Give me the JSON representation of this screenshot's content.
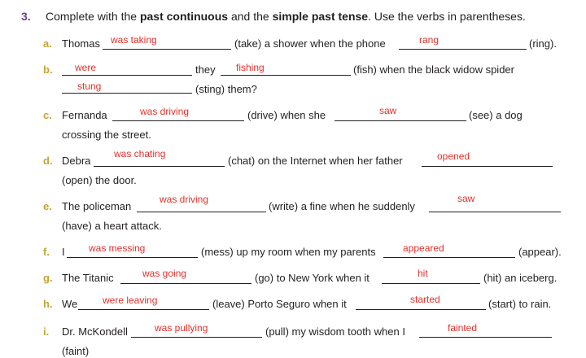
{
  "exercise": {
    "number": "3.",
    "instr_1": "Complete with the ",
    "instr_2": "past continuous",
    "instr_3": " and the ",
    "instr_4": "simple past tense",
    "instr_5": ". Use the verbs in parentheses."
  },
  "items": {
    "a": {
      "letter": "a.",
      "t1": "Thomas",
      "a1": "was taking",
      "t2": "(take) a shower when the phone",
      "a2": "rang",
      "t3": "(ring)."
    },
    "b": {
      "letter": "b.",
      "a1": "were",
      "t1": "they",
      "a2": "fishing",
      "t2": "(fish) when the black widow spider",
      "a3": "stung",
      "t3": "(sting) them?"
    },
    "c": {
      "letter": "c.",
      "t1": "Fernanda",
      "a1": "was driving",
      "t2": "(drive) when she",
      "a2": "saw",
      "t3": "(see) a dog",
      "t4": "crossing the street."
    },
    "d": {
      "letter": "d.",
      "t1": "Debra",
      "a1": "was chating",
      "t2": "(chat) on the Internet when her father",
      "a2": "opened",
      "t3": "(open) the door."
    },
    "e": {
      "letter": "e.",
      "t1": "The policeman",
      "a1": "was driving",
      "t2": "(write) a fine when he suddenly",
      "a2": "saw",
      "t3": "(have) a heart attack."
    },
    "f": {
      "letter": "f.",
      "t1": "I",
      "a1": "was messing",
      "t2": "(mess) up my room when my parents",
      "a2": "appeared",
      "t3": "(appear)."
    },
    "g": {
      "letter": "g.",
      "t1": "The Titanic",
      "a1": "was going",
      "t2": "(go) to New York when it",
      "a2": "hit",
      "t3": "(hit) an iceberg."
    },
    "h": {
      "letter": "h.",
      "t1": "We",
      "a1": "were leaving",
      "t2": "(leave) Porto Seguro when it",
      "a2": "started",
      "t3": "(start) to rain."
    },
    "i": {
      "letter": "i.",
      "t1": "Dr. McKondell",
      "a1": "was pullying",
      "t2": "(pull) my wisdom tooth when I",
      "a2": "fainted",
      "t3": "(faint)"
    }
  },
  "colors": {
    "number": "#6b3f91",
    "letter": "#c8a335",
    "answer": "#e0322b",
    "text": "#231f20"
  }
}
